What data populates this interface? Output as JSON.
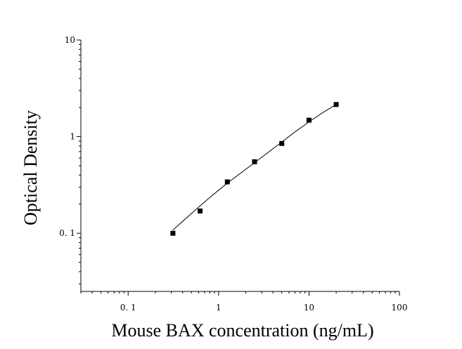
{
  "chart_data": {
    "type": "scatter",
    "title": "",
    "xlabel": "Mouse BAX concentration (ng/mL)",
    "ylabel": "Optical Density",
    "xscale": "log",
    "yscale": "log",
    "xlim": [
      0.03,
      100
    ],
    "ylim": [
      0.025,
      10
    ],
    "grid": false,
    "x_ticks": [
      {
        "value": 0.1,
        "label": "0. 1"
      },
      {
        "value": 1,
        "label": "1"
      },
      {
        "value": 10,
        "label": "10"
      },
      {
        "value": 100,
        "label": "100"
      }
    ],
    "y_ticks": [
      {
        "value": 0.1,
        "label": "0. 1"
      },
      {
        "value": 1,
        "label": "1"
      },
      {
        "value": 10,
        "label": "10"
      }
    ],
    "series": [
      {
        "marker": "square",
        "color": "#000000",
        "x": [
          0.3125,
          0.625,
          1.25,
          2.5,
          5,
          10,
          20
        ],
        "y": [
          0.1,
          0.17,
          0.34,
          0.55,
          0.85,
          1.48,
          2.15
        ]
      }
    ],
    "fit_curve": {
      "color": "#000000",
      "x": [
        0.3125,
        0.5,
        0.8,
        1.25,
        2,
        3.2,
        5,
        7,
        10,
        14,
        20
      ],
      "y": [
        0.108,
        0.16,
        0.235,
        0.33,
        0.46,
        0.64,
        0.88,
        1.12,
        1.42,
        1.76,
        2.15
      ]
    }
  }
}
